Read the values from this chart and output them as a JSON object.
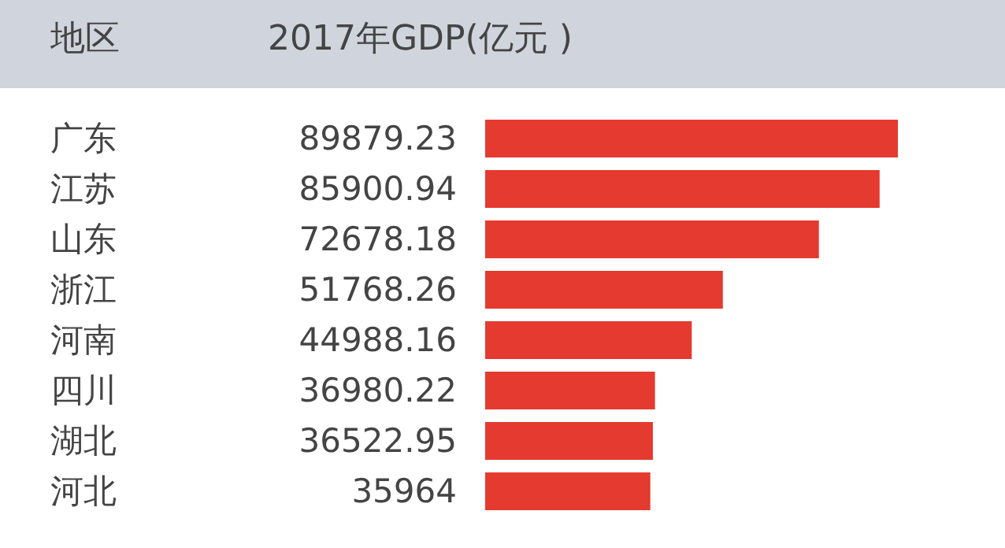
{
  "chart_data": {
    "type": "bar",
    "orientation": "horizontal",
    "ylabel": "地区",
    "xlabel": "2017年GDP(亿元 )",
    "categories": [
      "广东",
      "江苏",
      "山东",
      "浙江",
      "河南",
      "四川",
      "湖北",
      "河北"
    ],
    "values": [
      89879.23,
      85900.94,
      72678.18,
      51768.26,
      44988.16,
      36980.22,
      36522.95,
      35964
    ],
    "value_labels": [
      "89879.23",
      "85900.94",
      "72678.18",
      "51768.26",
      "44988.16",
      "36980.22",
      "36522.95",
      "35964"
    ],
    "color": "#e53a2f"
  }
}
